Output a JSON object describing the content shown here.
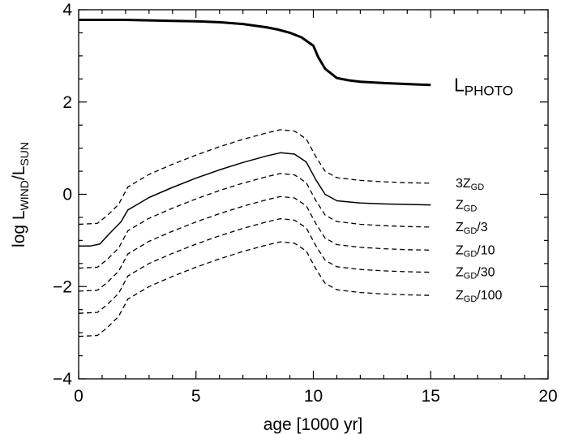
{
  "chart_data": {
    "type": "line",
    "title": "",
    "xlabel": "age [1000 yr]",
    "ylabel_parts": {
      "main": "log L",
      "sub1": "WIND",
      "sep": "/L",
      "sub2": "SUN"
    },
    "xlim": [
      0,
      20
    ],
    "ylim": [
      -4,
      4
    ],
    "x_ticks": [
      "0",
      "5",
      "10",
      "15",
      "20"
    ],
    "y_ticks": [
      "−4",
      "−2",
      "0",
      "2",
      "4"
    ],
    "x_tick_values": [
      0,
      5,
      10,
      15,
      20
    ],
    "y_tick_values": [
      -4,
      -2,
      0,
      2,
      4
    ],
    "grid": false,
    "series": [
      {
        "id": "photo",
        "label_main": "L",
        "label_sub": "PHOTO",
        "label_suffix": "",
        "style": "solid-thick",
        "x": [
          0,
          1,
          2,
          3,
          4,
          5,
          6,
          7,
          8,
          8.5,
          9,
          9.5,
          10,
          10.2,
          10.5,
          11,
          11.5,
          12,
          13,
          14,
          15
        ],
        "y": [
          3.78,
          3.78,
          3.78,
          3.77,
          3.76,
          3.75,
          3.73,
          3.69,
          3.62,
          3.57,
          3.5,
          3.4,
          3.22,
          2.98,
          2.72,
          2.52,
          2.47,
          2.44,
          2.41,
          2.39,
          2.37
        ]
      },
      {
        "id": "z3",
        "label_main": "3Z",
        "label_sub": "GD",
        "label_suffix": "",
        "style": "dashed",
        "x": [
          0,
          0.8,
          1.2,
          1.7,
          2.1,
          3,
          4,
          5,
          6,
          7,
          8,
          8.6,
          9.2,
          9.7,
          10.1,
          10.5,
          11,
          12,
          13,
          14,
          15
        ],
        "y": [
          -0.65,
          -0.63,
          -0.47,
          -0.22,
          0.16,
          0.43,
          0.65,
          0.85,
          1.03,
          1.19,
          1.33,
          1.4,
          1.37,
          1.2,
          0.82,
          0.5,
          0.36,
          0.3,
          0.27,
          0.25,
          0.24
        ]
      },
      {
        "id": "z1",
        "label_main": "Z",
        "label_sub": "GD",
        "label_suffix": "",
        "style": "solid",
        "x": [
          0,
          0.5,
          0.9,
          1.3,
          1.8,
          2.1,
          3,
          4,
          5,
          6,
          7,
          8,
          8.6,
          9.2,
          9.7,
          10.1,
          10.5,
          11,
          12,
          13,
          14,
          15
        ],
        "y": [
          -1.12,
          -1.12,
          -1.08,
          -0.86,
          -0.6,
          -0.34,
          -0.07,
          0.15,
          0.35,
          0.53,
          0.69,
          0.83,
          0.9,
          0.87,
          0.7,
          0.32,
          0.0,
          -0.14,
          -0.19,
          -0.21,
          -0.22,
          -0.23
        ]
      },
      {
        "id": "z3rd",
        "label_main": "Z",
        "label_sub": "GD",
        "label_suffix": "/3",
        "style": "dashed",
        "x": [
          0,
          0.8,
          1.2,
          1.7,
          2.1,
          3,
          4,
          5,
          6,
          7,
          8,
          8.6,
          9.2,
          9.7,
          10.1,
          10.5,
          11,
          12,
          13,
          14,
          15
        ],
        "y": [
          -1.6,
          -1.58,
          -1.42,
          -1.17,
          -0.79,
          -0.52,
          -0.3,
          -0.1,
          0.08,
          0.24,
          0.38,
          0.45,
          0.42,
          0.25,
          -0.13,
          -0.45,
          -0.59,
          -0.65,
          -0.68,
          -0.7,
          -0.71
        ]
      },
      {
        "id": "z10",
        "label_main": "Z",
        "label_sub": "GD",
        "label_suffix": "/10",
        "style": "dashed",
        "x": [
          0,
          0.8,
          1.2,
          1.7,
          2.1,
          3,
          4,
          5,
          6,
          7,
          8,
          8.6,
          9.2,
          9.7,
          10.1,
          10.5,
          11,
          12,
          13,
          14,
          15
        ],
        "y": [
          -2.1,
          -2.08,
          -1.92,
          -1.67,
          -1.29,
          -1.02,
          -0.8,
          -0.6,
          -0.42,
          -0.26,
          -0.12,
          -0.05,
          -0.08,
          -0.25,
          -0.63,
          -0.95,
          -1.09,
          -1.15,
          -1.18,
          -1.2,
          -1.21
        ]
      },
      {
        "id": "z30",
        "label_main": "Z",
        "label_sub": "GD",
        "label_suffix": "/30",
        "style": "dashed",
        "x": [
          0,
          0.8,
          1.2,
          1.7,
          2.1,
          3,
          4,
          5,
          6,
          7,
          8,
          8.6,
          9.2,
          9.7,
          10.1,
          10.5,
          11,
          12,
          13,
          14,
          15
        ],
        "y": [
          -2.58,
          -2.56,
          -2.4,
          -2.15,
          -1.77,
          -1.5,
          -1.28,
          -1.08,
          -0.9,
          -0.74,
          -0.6,
          -0.53,
          -0.56,
          -0.73,
          -1.11,
          -1.43,
          -1.57,
          -1.63,
          -1.66,
          -1.68,
          -1.69
        ]
      },
      {
        "id": "z100",
        "label_main": "Z",
        "label_sub": "GD",
        "label_suffix": "/100",
        "style": "dashed",
        "x": [
          0,
          0.8,
          1.2,
          1.7,
          2.1,
          3,
          4,
          5,
          6,
          7,
          8,
          8.6,
          9.2,
          9.7,
          10.1,
          10.5,
          11,
          12,
          13,
          14,
          15
        ],
        "y": [
          -3.08,
          -3.06,
          -2.9,
          -2.65,
          -2.27,
          -2.0,
          -1.78,
          -1.58,
          -1.4,
          -1.24,
          -1.1,
          -1.03,
          -1.06,
          -1.23,
          -1.61,
          -1.93,
          -2.07,
          -2.13,
          -2.16,
          -2.18,
          -2.19
        ]
      }
    ]
  }
}
